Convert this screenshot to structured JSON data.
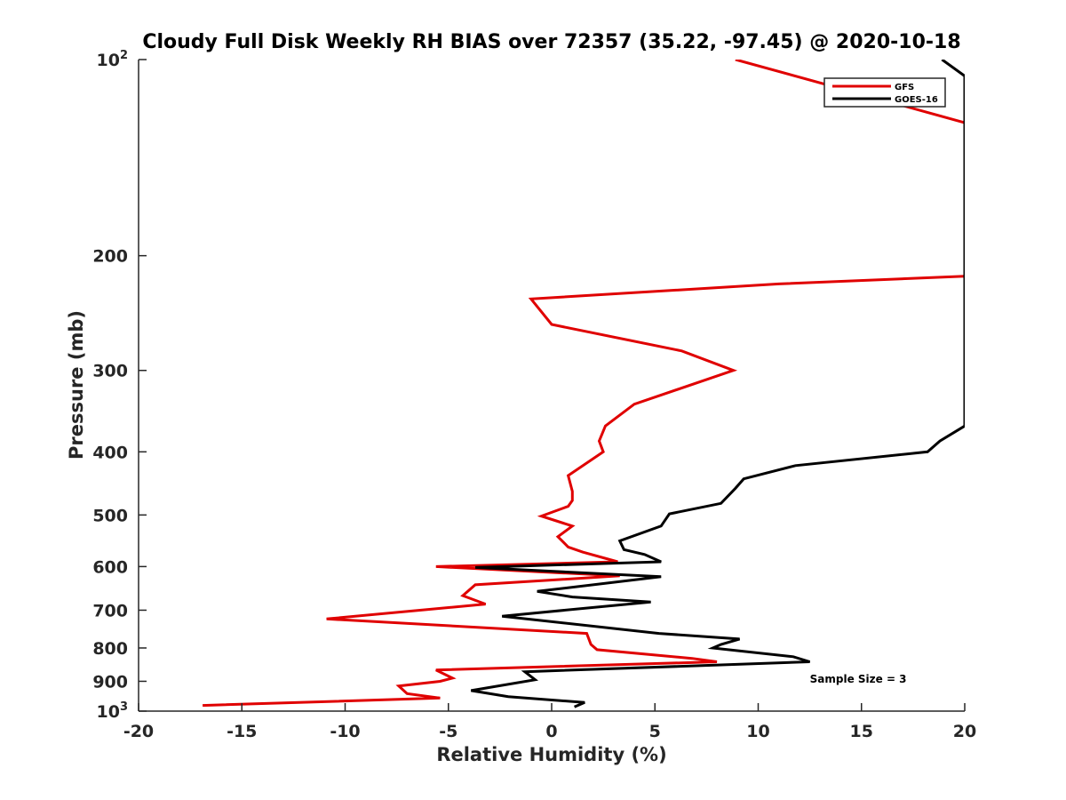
{
  "chart_data": {
    "type": "line",
    "title": "Cloudy Full Disk Weekly RH BIAS over 72357 (35.22, -97.45) @ 2020-10-18",
    "xlabel": "Relative Humidity (%)",
    "ylabel": "Pressure (mb)",
    "xlim": [
      -20,
      20
    ],
    "ylim": [
      100,
      1000
    ],
    "y_scale": "log",
    "y_reversed": true,
    "grid": false,
    "legend_position": "top-right",
    "x_ticks": [
      "-20",
      "-15",
      "-10",
      "-5",
      "0",
      "5",
      "10",
      "15",
      "20"
    ],
    "y_ticks": [
      {
        "value": 100,
        "label": "10",
        "exp": "2"
      },
      {
        "value": 200,
        "label": "200",
        "exp": ""
      },
      {
        "value": 300,
        "label": "300",
        "exp": ""
      },
      {
        "value": 400,
        "label": "400",
        "exp": ""
      },
      {
        "value": 500,
        "label": "500",
        "exp": ""
      },
      {
        "value": 600,
        "label": "600",
        "exp": ""
      },
      {
        "value": 700,
        "label": "700",
        "exp": ""
      },
      {
        "value": 800,
        "label": "800",
        "exp": ""
      },
      {
        "value": 900,
        "label": "900",
        "exp": ""
      },
      {
        "value": 1000,
        "label": "10",
        "exp": "3"
      }
    ],
    "series": [
      {
        "name": "GFS",
        "color": "#e00000",
        "points": [
          {
            "x": 8.9,
            "y": 100
          },
          {
            "x": 20.0,
            "y": 125
          },
          {
            "x": 20.0,
            "y": 215
          },
          {
            "x": 11.0,
            "y": 221
          },
          {
            "x": -1.0,
            "y": 233
          },
          {
            "x": 0.0,
            "y": 255
          },
          {
            "x": 6.3,
            "y": 280
          },
          {
            "x": 8.8,
            "y": 300
          },
          {
            "x": 4.0,
            "y": 338
          },
          {
            "x": 2.6,
            "y": 365
          },
          {
            "x": 2.3,
            "y": 385
          },
          {
            "x": 2.5,
            "y": 400
          },
          {
            "x": 0.8,
            "y": 435
          },
          {
            "x": 1.0,
            "y": 460
          },
          {
            "x": 1.0,
            "y": 475
          },
          {
            "x": 0.8,
            "y": 485
          },
          {
            "x": -0.5,
            "y": 502
          },
          {
            "x": 1.0,
            "y": 520
          },
          {
            "x": 0.3,
            "y": 540
          },
          {
            "x": 0.8,
            "y": 560
          },
          {
            "x": 1.5,
            "y": 570
          },
          {
            "x": 3.2,
            "y": 590
          },
          {
            "x": -5.6,
            "y": 600
          },
          {
            "x": 3.3,
            "y": 620
          },
          {
            "x": -3.7,
            "y": 640
          },
          {
            "x": -4.3,
            "y": 665
          },
          {
            "x": -3.2,
            "y": 685
          },
          {
            "x": -10.9,
            "y": 722
          },
          {
            "x": 1.7,
            "y": 760
          },
          {
            "x": 1.9,
            "y": 790
          },
          {
            "x": 2.2,
            "y": 805
          },
          {
            "x": 6.8,
            "y": 830
          },
          {
            "x": 8.0,
            "y": 840
          },
          {
            "x": -5.6,
            "y": 865
          },
          {
            "x": -4.8,
            "y": 890
          },
          {
            "x": -5.4,
            "y": 900
          },
          {
            "x": -7.4,
            "y": 915
          },
          {
            "x": -7.0,
            "y": 940
          },
          {
            "x": -5.4,
            "y": 955
          },
          {
            "x": -16.9,
            "y": 980
          }
        ]
      },
      {
        "name": "GOES-16",
        "color": "#000000",
        "points": [
          {
            "x": 18.9,
            "y": 100
          },
          {
            "x": 20.0,
            "y": 106
          },
          {
            "x": 20.0,
            "y": 365
          },
          {
            "x": 18.8,
            "y": 385
          },
          {
            "x": 18.2,
            "y": 400
          },
          {
            "x": 11.8,
            "y": 420
          },
          {
            "x": 9.3,
            "y": 440
          },
          {
            "x": 8.9,
            "y": 455
          },
          {
            "x": 8.2,
            "y": 480
          },
          {
            "x": 5.7,
            "y": 498
          },
          {
            "x": 5.3,
            "y": 520
          },
          {
            "x": 3.3,
            "y": 548
          },
          {
            "x": 3.5,
            "y": 565
          },
          {
            "x": 4.5,
            "y": 575
          },
          {
            "x": 5.3,
            "y": 590
          },
          {
            "x": -3.7,
            "y": 602
          },
          {
            "x": 5.3,
            "y": 622
          },
          {
            "x": -0.7,
            "y": 655
          },
          {
            "x": 1.0,
            "y": 668
          },
          {
            "x": 4.8,
            "y": 680
          },
          {
            "x": -2.4,
            "y": 715
          },
          {
            "x": 5.2,
            "y": 760
          },
          {
            "x": 9.1,
            "y": 775
          },
          {
            "x": 8.2,
            "y": 790
          },
          {
            "x": 7.8,
            "y": 800
          },
          {
            "x": 11.7,
            "y": 825
          },
          {
            "x": 12.5,
            "y": 840
          },
          {
            "x": -1.3,
            "y": 870
          },
          {
            "x": -0.8,
            "y": 895
          },
          {
            "x": -3.9,
            "y": 930
          },
          {
            "x": -2.1,
            "y": 950
          },
          {
            "x": 1.6,
            "y": 970
          },
          {
            "x": 1.1,
            "y": 985
          }
        ]
      }
    ],
    "annotations": [
      {
        "text": "Sample Size = 3",
        "x": 12.5,
        "y": 905
      }
    ]
  }
}
